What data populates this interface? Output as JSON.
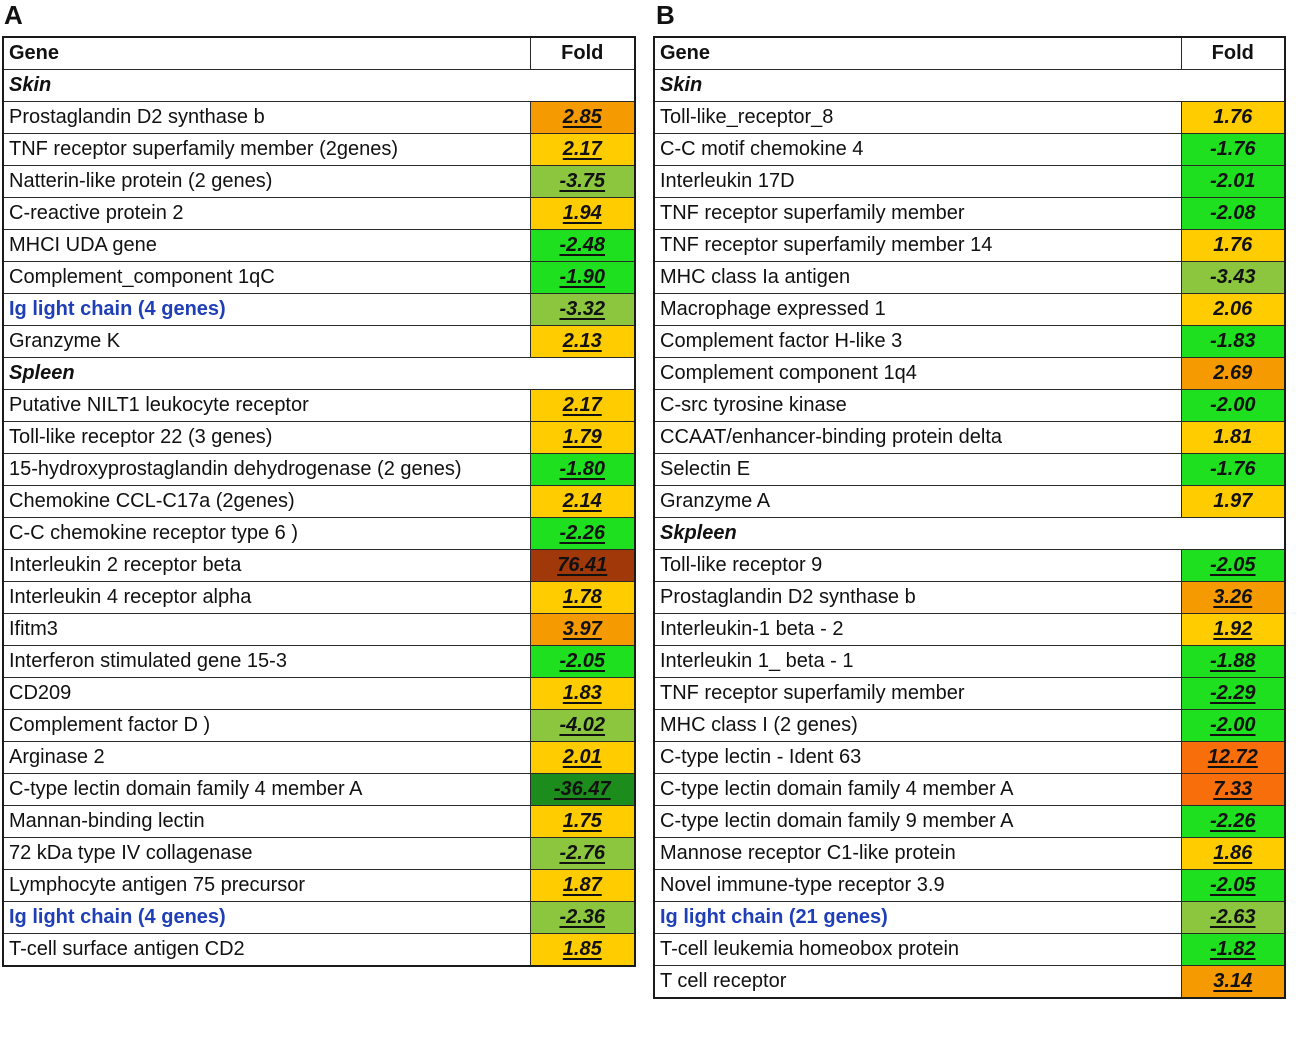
{
  "panels": [
    {
      "label": "A",
      "headers": {
        "gene": "Gene",
        "fold": "Fold"
      },
      "sections": [
        {
          "title": "Skin",
          "rows": [
            {
              "gene": "Prostaglandin D2 synthase b",
              "fold": "2.85",
              "color": "#f59a00",
              "highlight": false
            },
            {
              "gene": "TNF receptor superfamily member (2genes)",
              "fold": "2.17",
              "color": "#ffcc00",
              "highlight": false
            },
            {
              "gene": "Natterin-like protein (2 genes)",
              "fold": "-3.75",
              "color": "#8cc63f",
              "highlight": false
            },
            {
              "gene": "C-reactive protein 2",
              "fold": "1.94",
              "color": "#ffcc00",
              "highlight": false
            },
            {
              "gene": "MHCI UDA gene",
              "fold": "-2.48",
              "color": "#1fe01f",
              "highlight": false
            },
            {
              "gene": "Complement_component 1qC",
              "fold": "-1.90",
              "color": "#1fe01f",
              "highlight": false
            },
            {
              "gene": "Ig light chain (4 genes)",
              "fold": "-3.32",
              "color": "#8cc63f",
              "highlight": true
            },
            {
              "gene": "Granzyme K",
              "fold": "2.13",
              "color": "#ffcc00",
              "highlight": false
            }
          ]
        },
        {
          "title": "Spleen",
          "rows": [
            {
              "gene": "Putative NILT1 leukocyte receptor",
              "fold": "2.17",
              "color": "#ffcc00",
              "highlight": false
            },
            {
              "gene": "Toll-like receptor 22 (3 genes)",
              "fold": "1.79",
              "color": "#ffcc00",
              "highlight": false
            },
            {
              "gene": "15-hydroxyprostaglandin dehydrogenase (2 genes)",
              "fold": "-1.80",
              "color": "#1fe01f",
              "highlight": false
            },
            {
              "gene": "Chemokine CCL-C17a (2genes)",
              "fold": "2.14",
              "color": "#ffcc00",
              "highlight": false
            },
            {
              "gene": "C-C chemokine receptor type 6 )",
              "fold": "-2.26",
              "color": "#1fe01f",
              "highlight": false
            },
            {
              "gene": "Interleukin 2 receptor beta",
              "fold": "76.41",
              "color": "#a0380a",
              "highlight": false
            },
            {
              "gene": "Interleukin 4 receptor alpha",
              "fold": "1.78",
              "color": "#ffcc00",
              "highlight": false
            },
            {
              "gene": "Ifitm3",
              "fold": "3.97",
              "color": "#f59a00",
              "highlight": false
            },
            {
              "gene": "Interferon stimulated gene 15-3",
              "fold": "-2.05",
              "color": "#1fe01f",
              "highlight": false
            },
            {
              "gene": "CD209",
              "fold": "1.83",
              "color": "#ffcc00",
              "highlight": false
            },
            {
              "gene": "Complement factor D )",
              "fold": "-4.02",
              "color": "#8cc63f",
              "highlight": false
            },
            {
              "gene": "Arginase 2",
              "fold": "2.01",
              "color": "#ffcc00",
              "highlight": false
            },
            {
              "gene": "C-type lectin domain family 4 member A",
              "fold": "-36.47",
              "color": "#1c8c1c",
              "highlight": false
            },
            {
              "gene": "Mannan-binding lectin",
              "fold": "1.75",
              "color": "#ffcc00",
              "highlight": false
            },
            {
              "gene": "72 kDa type IV collagenase",
              "fold": "-2.76",
              "color": "#8cc63f",
              "highlight": false
            },
            {
              "gene": "Lymphocyte antigen 75 precursor",
              "fold": "1.87",
              "color": "#ffcc00",
              "highlight": false
            },
            {
              "gene": "Ig light chain (4 genes)",
              "fold": "-2.36",
              "color": "#8cc63f",
              "highlight": true
            },
            {
              "gene": "T-cell surface antigen CD2",
              "fold": "1.85",
              "color": "#ffcc00",
              "highlight": false
            }
          ]
        }
      ]
    },
    {
      "label": "B",
      "headers": {
        "gene": "Gene",
        "fold": "Fold"
      },
      "sections": [
        {
          "title": "Skin",
          "rows": [
            {
              "gene": "Toll-like_receptor_8",
              "fold": "1.76",
              "color": "#ffcc00",
              "highlight": false
            },
            {
              "gene": "C-C motif chemokine 4",
              "fold": "-1.76",
              "color": "#1fe01f",
              "highlight": false
            },
            {
              "gene": "Interleukin 17D",
              "fold": "-2.01",
              "color": "#1fe01f",
              "highlight": false
            },
            {
              "gene": "TNF receptor superfamily member",
              "fold": "-2.08",
              "color": "#1fe01f",
              "highlight": false
            },
            {
              "gene": "TNF receptor superfamily member 14",
              "fold": "1.76",
              "color": "#ffcc00",
              "highlight": false
            },
            {
              "gene": "MHC class Ia antigen",
              "fold": "-3.43",
              "color": "#8cc63f",
              "highlight": false
            },
            {
              "gene": "Macrophage expressed 1",
              "fold": "2.06",
              "color": "#ffcc00",
              "highlight": false
            },
            {
              "gene": "Complement factor H-like 3",
              "fold": "-1.83",
              "color": "#1fe01f",
              "highlight": false
            },
            {
              "gene": "Complement component 1q4",
              "fold": "2.69",
              "color": "#f59a00",
              "highlight": false
            },
            {
              "gene": "C-src tyrosine kinase",
              "fold": "-2.00",
              "color": "#1fe01f",
              "highlight": false
            },
            {
              "gene": "CCAAT/enhancer-binding protein delta",
              "fold": "1.81",
              "color": "#ffcc00",
              "highlight": false
            },
            {
              "gene": "Selectin E",
              "fold": "-1.76",
              "color": "#1fe01f",
              "highlight": false
            },
            {
              "gene": "Granzyme A",
              "fold": "1.97",
              "color": "#ffcc00",
              "highlight": false
            }
          ]
        },
        {
          "title": "Skpleen",
          "rows": [
            {
              "gene": "Toll-like receptor 9",
              "fold": "-2.05",
              "color": "#1fe01f",
              "highlight": false
            },
            {
              "gene": "Prostaglandin D2 synthase b",
              "fold": "3.26",
              "color": "#f59a00",
              "highlight": false
            },
            {
              "gene": "Interleukin-1 beta - 2",
              "fold": "1.92",
              "color": "#ffcc00",
              "highlight": false
            },
            {
              "gene": "Interleukin 1_ beta - 1",
              "fold": "-1.88",
              "color": "#1fe01f",
              "highlight": false
            },
            {
              "gene": "TNF receptor superfamily member",
              "fold": "-2.29",
              "color": "#1fe01f",
              "highlight": false
            },
            {
              "gene": "MHC class I  (2 genes)",
              "fold": "-2.00",
              "color": "#1fe01f",
              "highlight": false
            },
            {
              "gene": "C-type lectin - Ident 63",
              "fold": "12.72",
              "color": "#f76e0a",
              "highlight": false
            },
            {
              "gene": "C-type lectin domain family 4 member A",
              "fold": "7.33",
              "color": "#f76e0a",
              "highlight": false
            },
            {
              "gene": "C-type lectin domain family 9 member A",
              "fold": "-2.26",
              "color": "#1fe01f",
              "highlight": false
            },
            {
              "gene": "Mannose receptor C1-like protein",
              "fold": "1.86",
              "color": "#ffcc00",
              "highlight": false
            },
            {
              "gene": "Novel immune-type receptor 3.9",
              "fold": "-2.05",
              "color": "#1fe01f",
              "highlight": false
            },
            {
              "gene": "Ig light chain (21 genes)",
              "fold": "-2.63",
              "color": "#8cc63f",
              "highlight": true
            },
            {
              "gene": "T-cell leukemia homeobox protein",
              "fold": "-1.82",
              "color": "#1fe01f",
              "highlight": false
            },
            {
              "gene": "T cell receptor",
              "fold": "3.14",
              "color": "#f59a00",
              "highlight": false
            }
          ]
        }
      ],
      "underline_first_section": false
    }
  ]
}
